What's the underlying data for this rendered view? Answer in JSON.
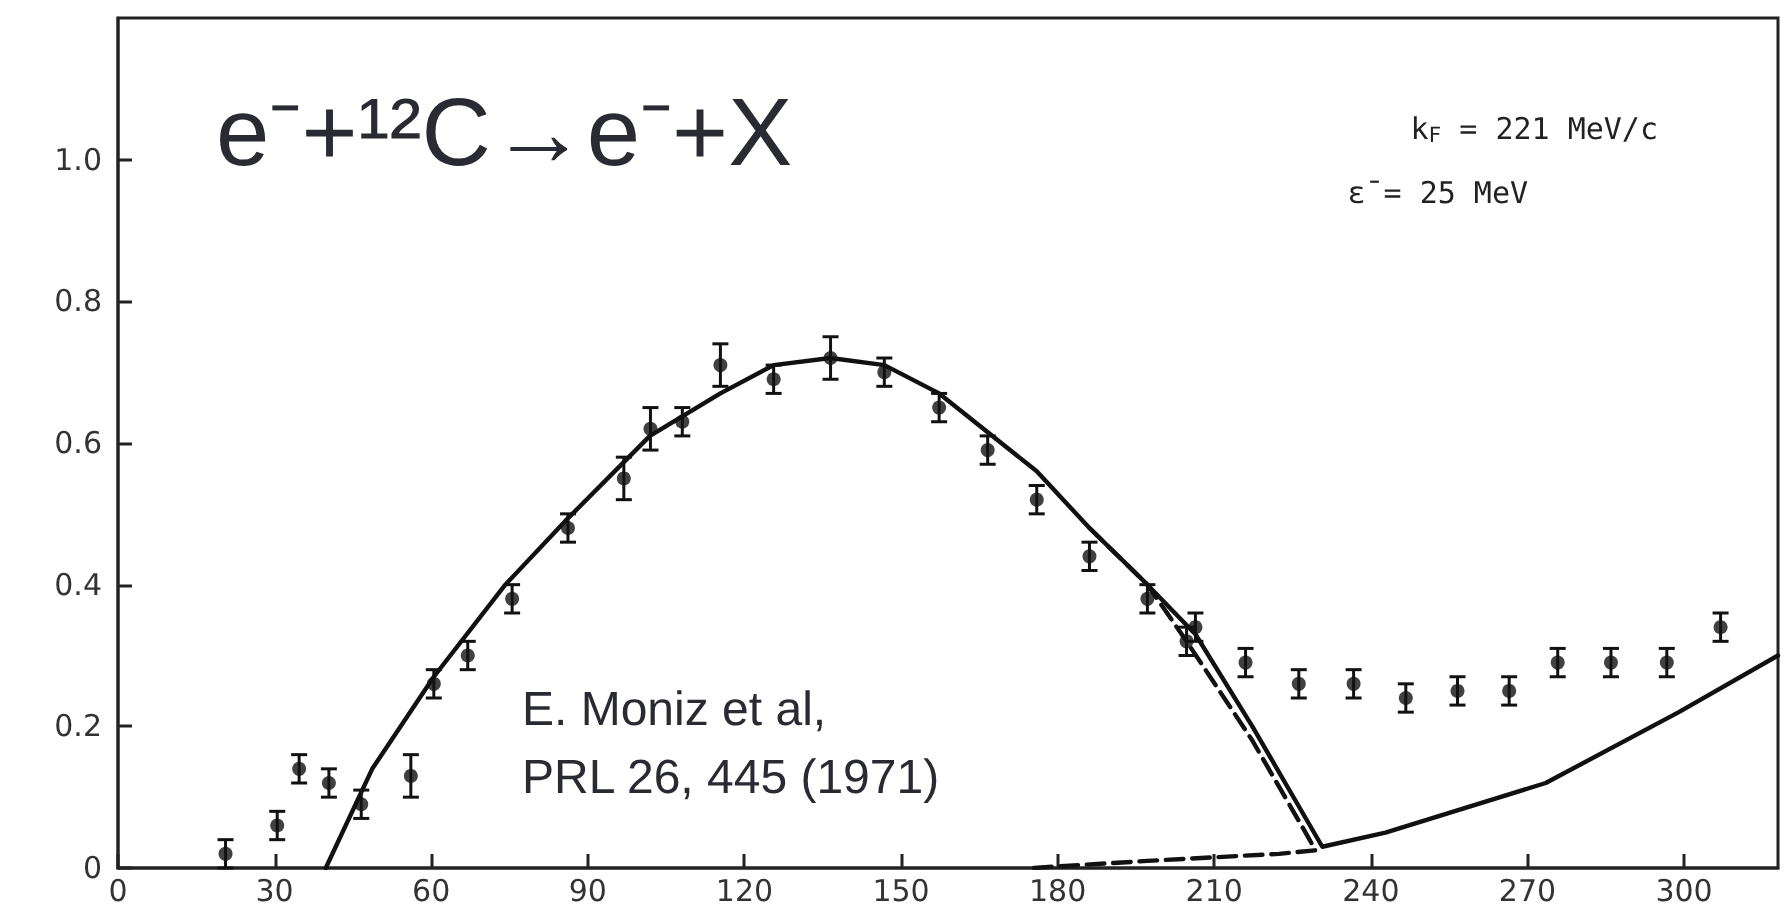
{
  "chart_data": {
    "type": "scatter",
    "title": "e⁻+¹²C→e⁻+X",
    "annotations": [
      "k$_{F}$ = 221 MeV/c",
      "ε̄ = 25 MeV",
      "E. Moniz et al,",
      "PRL 26, 445 (1971)"
    ],
    "xlim": [
      0,
      318
    ],
    "xticks": [
      0,
      30,
      60,
      90,
      120,
      150,
      180,
      210,
      240,
      270,
      300
    ],
    "ylim": [
      0,
      1.2
    ],
    "yticks": [
      0,
      {
        "value": 0.2,
        "label": "0.2"
      },
      {
        "value": 0.4,
        "label": "0.4"
      },
      {
        "value": 0.6,
        "label": "0.6"
      },
      {
        "value": 0.8,
        "label": "0.8"
      },
      {
        "value": 1,
        "label": "1.0"
      }
    ],
    "grid": false,
    "series": [
      {
        "color": "#111111",
        "marker": "circle",
        "x": [
          20.6,
          30.5,
          34.7,
          40.4,
          46.6,
          56.1,
          60.5,
          67.0,
          75.5,
          86.2,
          96.9,
          102.0,
          108.1,
          115.4,
          125.6,
          136.5,
          146.8,
          157.3,
          166.6,
          176.0,
          186.1,
          197.2,
          204.7,
          206.4,
          216.0,
          226.2,
          236.7,
          246.7,
          256.6,
          266.5,
          275.8,
          286.0,
          296.7,
          307.0
        ],
        "values": [
          0.02,
          0.06,
          0.14,
          0.12,
          0.09,
          0.13,
          0.26,
          0.3,
          0.38,
          0.48,
          0.55,
          0.62,
          0.63,
          0.71,
          0.69,
          0.72,
          0.7,
          0.65,
          0.59,
          0.52,
          0.44,
          0.38,
          0.32,
          0.34,
          0.29,
          0.26,
          0.26,
          0.24,
          0.25,
          0.25,
          0.29,
          0.29,
          0.29,
          0.34
        ],
        "errors": [
          0.02,
          0.02,
          0.02,
          0.02,
          0.02,
          0.03,
          0.02,
          0.02,
          0.02,
          0.02,
          0.03,
          0.03,
          0.02,
          0.03,
          0.02,
          0.03,
          0.02,
          0.02,
          0.02,
          0.02,
          0.02,
          0.02,
          0.02,
          0.02,
          0.02,
          0.02,
          0.02,
          0.02,
          0.02,
          0.02,
          0.02,
          0.02,
          0.02,
          0.02
        ]
      },
      {
        "type": "line",
        "color": "#111111",
        "line_style": "solid",
        "marker": "none",
        "x": [
          39.8,
          48.7,
          60.5,
          74.2,
          85.7,
          101.9,
          115.4,
          125.6,
          136.5,
          146.8,
          157.3,
          176.0,
          186.1,
          197.2,
          206.4,
          217.3,
          230.7,
          242.8,
          273.5,
          299.0,
          318.0
        ],
        "values": [
          0,
          0.14,
          0.27,
          0.4,
          0.49,
          0.61,
          0.67,
          0.71,
          0.72,
          0.71,
          0.67,
          0.56,
          0.48,
          0.4,
          0.33,
          0.2,
          0.03,
          0.05,
          0.12,
          0.22,
          0.3
        ]
      },
      {
        "type": "line",
        "color": "#111111",
        "line_style": "dashed",
        "marker": "none",
        "x": [
          186.1,
          197.2,
          204.7,
          217.3,
          227.5,
          229.4,
          222.4,
          197.2,
          175.0
        ],
        "values": [
          0.48,
          0.4,
          0.32,
          0.18,
          0.05,
          0.025,
          0.02,
          0.01,
          0
        ]
      }
    ]
  }
}
